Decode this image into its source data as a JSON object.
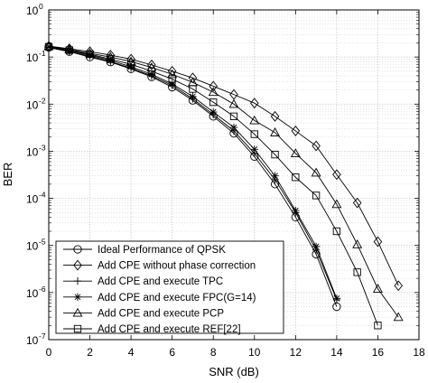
{
  "chart_data": {
    "type": "line",
    "xlabel": "SNR (dB)",
    "ylabel": "BER",
    "xlim": [
      0,
      18
    ],
    "ylim": [
      1e-07,
      1
    ],
    "yscale": "log",
    "grid": "on (major solid, minor dotted)",
    "legend_position": "bottom-left",
    "xticks": [
      "0",
      "2",
      "4",
      "6",
      "8",
      "10",
      "12",
      "14",
      "16",
      "18"
    ],
    "yticks": [
      {
        "base": "10",
        "exp": "-7",
        "value": 1e-07
      },
      {
        "base": "10",
        "exp": "-6",
        "value": 1e-06
      },
      {
        "base": "10",
        "exp": "-5",
        "value": 1e-05
      },
      {
        "base": "10",
        "exp": "-4",
        "value": 0.0001
      },
      {
        "base": "10",
        "exp": "-3",
        "value": 0.001
      },
      {
        "base": "10",
        "exp": "-2",
        "value": 0.01
      },
      {
        "base": "10",
        "exp": "-1",
        "value": 0.1
      },
      {
        "base": "10",
        "exp": "0",
        "value": 1
      }
    ],
    "series": [
      {
        "name": "Ideal Performance of QPSK",
        "marker": "circle",
        "x": [
          0,
          1,
          2,
          3,
          4,
          5,
          6,
          7,
          8,
          9,
          10,
          11,
          12,
          13,
          14
        ],
        "y": [
          0.16,
          0.13,
          0.1,
          0.078,
          0.056,
          0.038,
          0.023,
          0.012,
          0.0055,
          0.0024,
          0.00077,
          0.0002,
          4e-05,
          6.5e-06,
          5e-07
        ]
      },
      {
        "name": "Add CPE without phase correction",
        "marker": "diamond",
        "x": [
          0,
          1,
          2,
          3,
          4,
          5,
          6,
          7,
          8,
          9,
          10,
          11,
          12,
          13,
          14,
          15,
          16,
          17
        ],
        "y": [
          0.17,
          0.15,
          0.13,
          0.11,
          0.09,
          0.068,
          0.05,
          0.036,
          0.024,
          0.016,
          0.0105,
          0.0055,
          0.0027,
          0.0013,
          0.00032,
          8e-05,
          1.2e-05,
          1.4e-06
        ]
      },
      {
        "name": "Add CPE and execute TPC",
        "marker": "plus",
        "x": [
          0,
          1,
          2,
          3,
          4,
          5,
          6,
          7,
          8,
          9,
          10,
          11,
          12,
          13,
          14
        ],
        "y": [
          0.16,
          0.13,
          0.105,
          0.08,
          0.058,
          0.04,
          0.025,
          0.013,
          0.006,
          0.0027,
          0.0009,
          0.00025,
          5e-05,
          8e-06,
          7e-07
        ]
      },
      {
        "name": "Add CPE and execute FPC(G=14)",
        "marker": "asterisk",
        "x": [
          0,
          1,
          2,
          3,
          4,
          5,
          6,
          7,
          8,
          9,
          10,
          11,
          12,
          13,
          14
        ],
        "y": [
          0.165,
          0.135,
          0.11,
          0.085,
          0.062,
          0.043,
          0.027,
          0.0145,
          0.0068,
          0.0032,
          0.0011,
          0.0003,
          5.5e-05,
          9.5e-06,
          7.5e-07
        ]
      },
      {
        "name": "Add CPE and execute PCP",
        "marker": "triangle",
        "x": [
          0,
          1,
          2,
          3,
          4,
          5,
          6,
          7,
          8,
          9,
          10,
          11,
          12,
          13,
          14,
          15,
          16,
          17
        ],
        "y": [
          0.17,
          0.145,
          0.12,
          0.1,
          0.08,
          0.06,
          0.043,
          0.029,
          0.018,
          0.01,
          0.0045,
          0.0025,
          0.0009,
          0.00035,
          7.5e-05,
          1.05e-05,
          1.2e-06,
          3e-07
        ]
      },
      {
        "name": "Add CPE and execute REF[22]",
        "marker": "square",
        "x": [
          0,
          1,
          2,
          3,
          4,
          5,
          6,
          7,
          8,
          9,
          10,
          11,
          12,
          13,
          14,
          15,
          16
        ],
        "y": [
          0.165,
          0.14,
          0.115,
          0.09,
          0.07,
          0.05,
          0.034,
          0.021,
          0.011,
          0.0055,
          0.0023,
          0.00085,
          0.00028,
          0.000115,
          2e-05,
          2.7e-06,
          2e-07
        ]
      }
    ]
  }
}
